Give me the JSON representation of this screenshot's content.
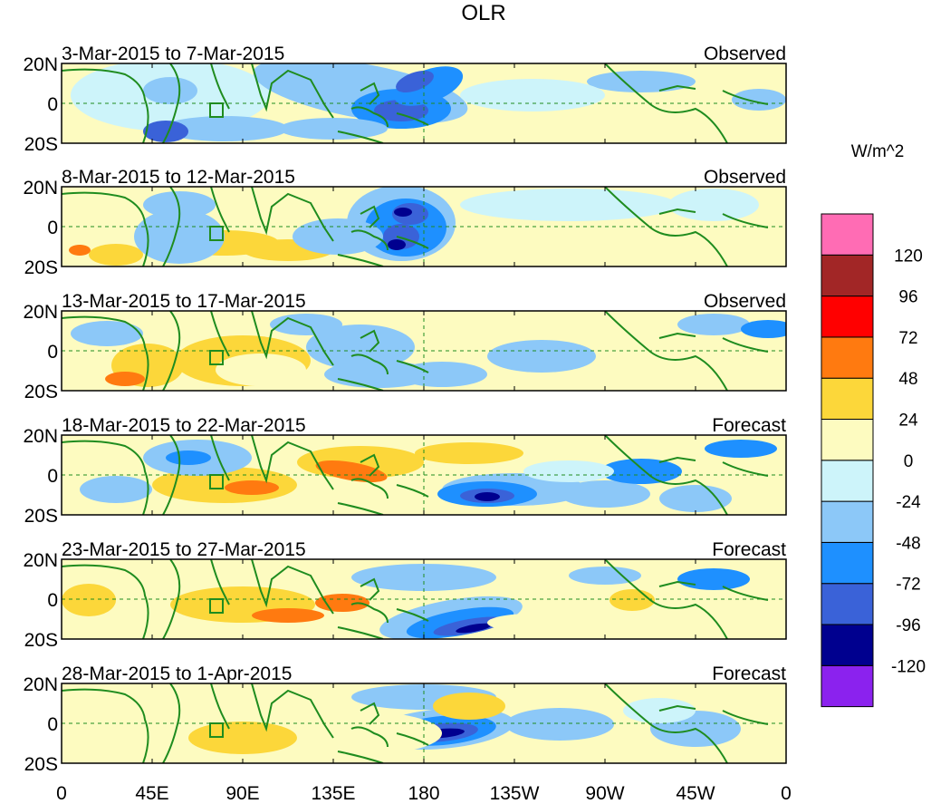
{
  "figure": {
    "title": "OLR",
    "units_label": "W/m^2",
    "lat_labels": [
      "20N",
      "0",
      "20S"
    ],
    "lon_labels": [
      "0",
      "45E",
      "90E",
      "135E",
      "180",
      "135W",
      "90W",
      "45W",
      "0"
    ],
    "lat_range_deg": [
      -20,
      20
    ],
    "lon_range_deg": [
      0,
      360
    ]
  },
  "panels": [
    {
      "period": "3-Mar-2015 to 7-Mar-2015",
      "kind": "Observed"
    },
    {
      "period": "8-Mar-2015 to 12-Mar-2015",
      "kind": "Observed"
    },
    {
      "period": "13-Mar-2015 to 17-Mar-2015",
      "kind": "Observed"
    },
    {
      "period": "18-Mar-2015 to 22-Mar-2015",
      "kind": "Forecast"
    },
    {
      "period": "23-Mar-2015 to 27-Mar-2015",
      "kind": "Forecast"
    },
    {
      "period": "28-Mar-2015 to 1-Apr-2015",
      "kind": "Forecast"
    }
  ],
  "colorbar": {
    "colors": [
      "#8b22ee",
      "#00008f",
      "#3a62d8",
      "#1e90ff",
      "#8cc8f8",
      "#cdf4fa",
      "#fdfbc0",
      "#fcd73a",
      "#ff7a10",
      "#ff0000",
      "#a22626",
      "#ff6cb4"
    ],
    "labels": [
      "-120",
      "-96",
      "-72",
      "-48",
      "-24",
      "0",
      "24",
      "48",
      "72",
      "96",
      "120"
    ]
  },
  "colors": {
    "land_outline": "#1f8c1f",
    "reference_lines": "#1f8c1f",
    "background_neutral": "#fdfbc0"
  }
}
